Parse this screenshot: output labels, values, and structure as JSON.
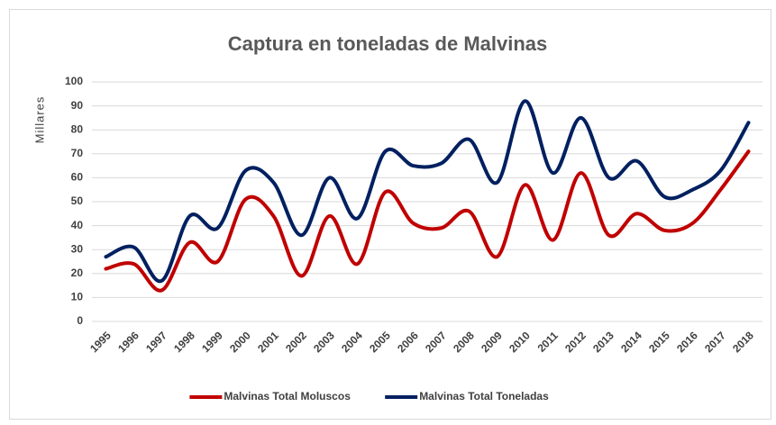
{
  "chart_data": {
    "type": "line",
    "title": "Captura en toneladas de Malvinas",
    "y_label": "Millares",
    "categories": [
      "1995",
      "1996",
      "1997",
      "1998",
      "1999",
      "2000",
      "2001",
      "2002",
      "2003",
      "2004",
      "2005",
      "2006",
      "2007",
      "2008",
      "2009",
      "2010",
      "2011",
      "2012",
      "2013",
      "2014",
      "2015",
      "2016",
      "2017",
      "2018"
    ],
    "series": [
      {
        "name": "Malvinas Total Moluscos",
        "color": "#c00000",
        "values": [
          22,
          24,
          13,
          33,
          25,
          51,
          44,
          19,
          44,
          24,
          54,
          41,
          39,
          46,
          27,
          57,
          34,
          62,
          36,
          45,
          38,
          41,
          55,
          71
        ]
      },
      {
        "name": "Malvinas Total Toneladas",
        "color": "#002060",
        "values": [
          27,
          31,
          17,
          44,
          39,
          63,
          58,
          36,
          60,
          43,
          71,
          65,
          66,
          76,
          58,
          92,
          62,
          85,
          60,
          67,
          52,
          55,
          63,
          83
        ]
      }
    ],
    "ylim": [
      0,
      100
    ],
    "yticks": [
      0,
      10,
      20,
      30,
      40,
      50,
      60,
      70,
      80,
      90,
      100
    ],
    "grid": true,
    "smooth": true,
    "legend": "bottom"
  }
}
